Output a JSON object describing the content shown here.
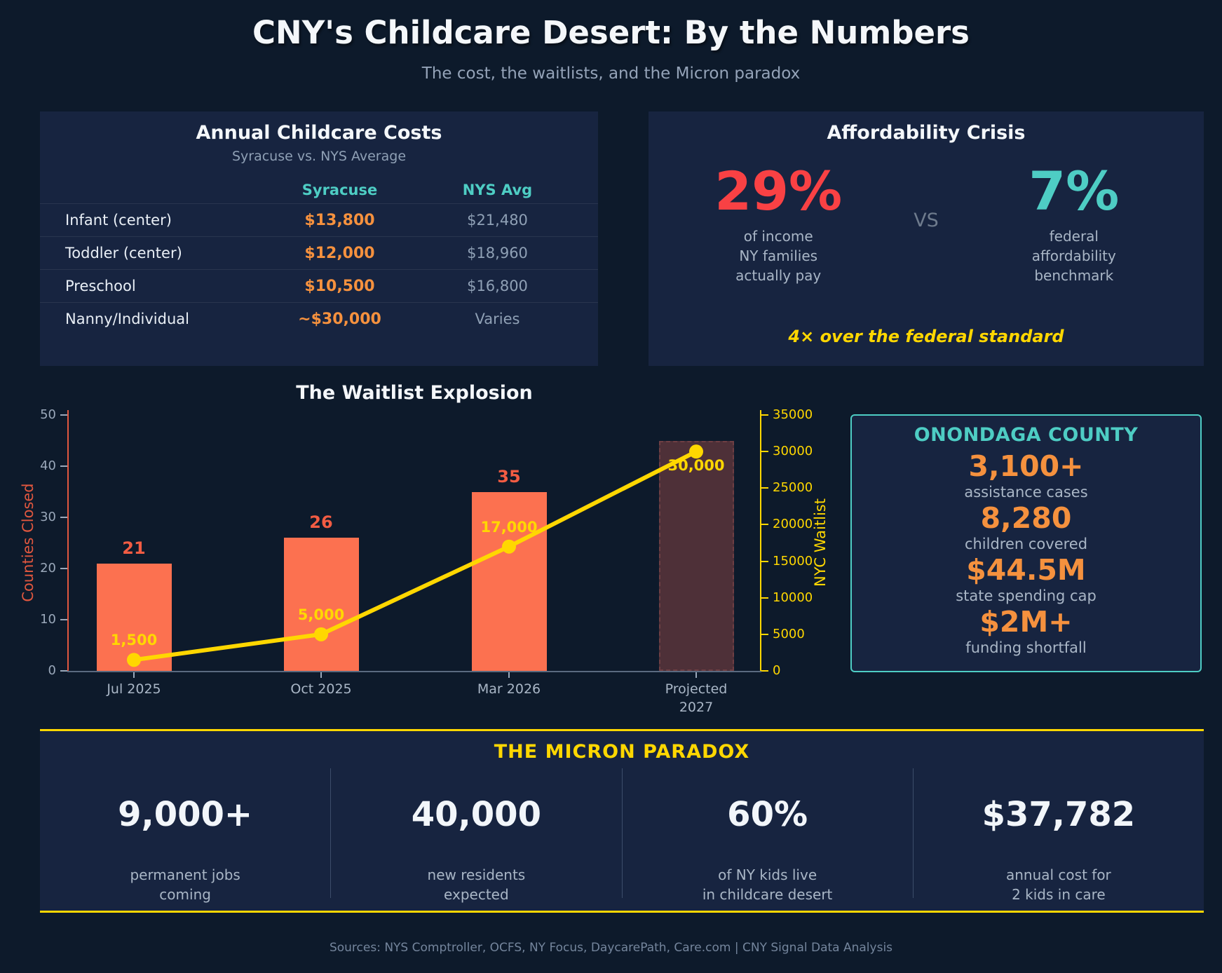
{
  "page": {
    "title": "CNY's Childcare Desert: By the Numbers",
    "subtitle": "The cost, the waitlists, and the Micron paradox",
    "footer": "Sources: NYS Comptroller, OCFS, NY Focus, DaycarePath, Care.com  |  CNY Signal Data Analysis"
  },
  "costs_panel": {
    "title": "Annual Childcare Costs",
    "subtitle": "Syracuse vs. NYS Average",
    "columns": [
      "Syracuse",
      "NYS Avg"
    ],
    "rows": [
      {
        "label": "Infant (center)",
        "syracuse": "$13,800",
        "nys": "$21,480"
      },
      {
        "label": "Toddler (center)",
        "syracuse": "$12,000",
        "nys": "$18,960"
      },
      {
        "label": "Preschool",
        "syracuse": "$10,500",
        "nys": "$16,800"
      },
      {
        "label": "Nanny/Individual",
        "syracuse": "~$30,000",
        "nys": "Varies"
      }
    ]
  },
  "affordability_panel": {
    "title": "Affordability Crisis",
    "left_value": "29%",
    "left_caption_lines": [
      "of income",
      "NY families",
      "actually pay"
    ],
    "vs": "VS",
    "right_value": "7%",
    "right_caption_lines": [
      "federal",
      "affordability",
      "benchmark"
    ],
    "note": "4× over the federal standard"
  },
  "chart_data": {
    "type": "bar+line",
    "title": "The Waitlist Explosion",
    "categories": [
      "Jul 2025",
      "Oct 2025",
      "Mar 2026",
      "Projected\n2027"
    ],
    "series": [
      {
        "name": "Counties Closed",
        "type": "bar",
        "axis": "left",
        "values": [
          21,
          26,
          35,
          45
        ],
        "point_labels": [
          "21",
          "26",
          "35",
          ""
        ],
        "projected_index": 3
      },
      {
        "name": "NYC Waitlist",
        "type": "line",
        "axis": "right",
        "values": [
          1500,
          5000,
          17000,
          30000
        ],
        "point_labels": [
          "1,500",
          "5,000",
          "17,000",
          "30,000"
        ]
      }
    ],
    "left_axis": {
      "label": "Counties Closed",
      "range": [
        0,
        50
      ],
      "ticks": [
        0,
        10,
        20,
        30,
        40,
        50
      ]
    },
    "right_axis": {
      "label": "NYC Waitlist",
      "range": [
        0,
        35000
      ],
      "ticks": [
        0,
        5000,
        10000,
        15000,
        20000,
        25000,
        30000,
        35000
      ]
    },
    "grid": false,
    "legend": "none"
  },
  "onondaga_panel": {
    "title": "ONONDAGA COUNTY",
    "stats": [
      {
        "value": "3,100+",
        "caption": "assistance cases"
      },
      {
        "value": "8,280",
        "caption": "children covered"
      },
      {
        "value": "$44.5M",
        "caption": "state spending cap"
      },
      {
        "value": "$2M+",
        "caption": "funding shortfall"
      }
    ]
  },
  "micron_panel": {
    "title": "THE MICRON PARADOX",
    "stats": [
      {
        "value": "9,000+",
        "caption_lines": [
          "permanent jobs",
          "coming"
        ]
      },
      {
        "value": "40,000",
        "caption_lines": [
          "new residents",
          "expected"
        ]
      },
      {
        "value": "60%",
        "caption_lines": [
          "of NY kids live",
          "in childcare desert"
        ]
      },
      {
        "value": "$37,782",
        "caption_lines": [
          "annual cost for",
          "2 kids in care"
        ]
      }
    ]
  },
  "colors": {
    "background": "#0d1a2b",
    "panel": "#172440",
    "teal": "#4ecdc4",
    "orange": "#f5913e",
    "red": "#f94144",
    "yellow": "#ffd700",
    "bar": "#fc7150",
    "bar_value_label": "#f25c43",
    "left_axis": "#e0573f",
    "projected_bar_fill": "#4e3038",
    "projected_bar_border": "#6e3f44",
    "muted_text": "#a9b6c6"
  }
}
